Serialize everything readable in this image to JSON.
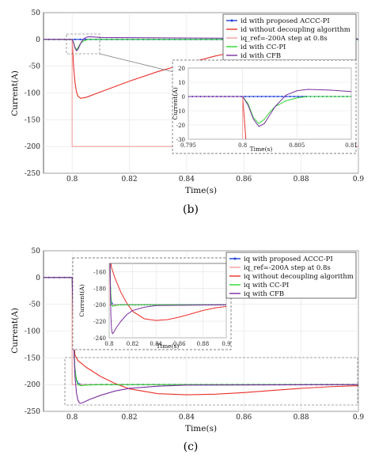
{
  "chart_data": [
    {
      "type": "line",
      "caption": "(b)",
      "xlabel": "Time(s)",
      "ylabel": "Current(A)",
      "xlim": [
        0.79,
        0.9
      ],
      "ylim": [
        -250,
        50
      ],
      "xticks": [
        0.8,
        0.82,
        0.84,
        0.86,
        0.88,
        0.9
      ],
      "xtick_labels": [
        "0.8",
        "0.82",
        "0.84",
        "0.86",
        "0.88",
        "0.9"
      ],
      "yticks": [
        50,
        0,
        -50,
        -100,
        -150,
        -200,
        -250
      ],
      "ytick_labels": [
        "50",
        "0",
        "-50",
        "-100",
        "-150",
        "-200",
        "-250"
      ],
      "grid": true,
      "legend_position": "top-right",
      "series": [
        {
          "name": "id with proposed ACCC-PI",
          "color": "#1f3fd6",
          "marker": "dot",
          "x": [
            0.79,
            0.8,
            0.802,
            0.805,
            0.81,
            0.82,
            0.84,
            0.86,
            0.88,
            0.9
          ],
          "y": [
            0,
            0,
            0,
            0,
            0,
            0,
            0,
            0,
            0,
            0
          ]
        },
        {
          "name": "id without decoupling algorithm",
          "color": "#e8302a",
          "x": [
            0.79,
            0.8,
            0.80005,
            0.8005,
            0.801,
            0.8015,
            0.802,
            0.803,
            0.805,
            0.81,
            0.815,
            0.82,
            0.83,
            0.84,
            0.85,
            0.86,
            0.87,
            0.88
          ],
          "y": [
            0,
            0,
            -5,
            -50,
            -80,
            -98,
            -106,
            -110,
            -108,
            -98,
            -88,
            -78,
            -60,
            -45,
            -31,
            -20,
            -10,
            -3
          ]
        },
        {
          "name": "iq_ref=-200A step at 0.8s",
          "color": "#f2a0a0",
          "x": [
            0.79,
            0.8,
            0.8,
            0.9
          ],
          "y": [
            0,
            0,
            -200,
            -200
          ]
        },
        {
          "name": "id with CC-PI",
          "color": "#2ed52e",
          "x": [
            0.79,
            0.8,
            0.8005,
            0.801,
            0.8015,
            0.802,
            0.8025,
            0.803,
            0.804,
            0.805,
            0.806,
            0.808,
            0.81,
            0.9
          ],
          "y": [
            0,
            0,
            -5,
            -15,
            -19,
            -16,
            -11,
            -7,
            -3,
            -1,
            0,
            0,
            0,
            0
          ]
        },
        {
          "name": "id with CFB",
          "color": "#7b2fa0",
          "x": [
            0.79,
            0.8,
            0.8005,
            0.801,
            0.8015,
            0.802,
            0.8025,
            0.803,
            0.804,
            0.805,
            0.806,
            0.808,
            0.81,
            0.9
          ],
          "y": [
            0,
            0,
            -6,
            -16,
            -21,
            -19,
            -13,
            -7,
            1,
            4,
            5,
            4.5,
            3.5,
            1
          ]
        }
      ],
      "inset": {
        "xlabel": "Time(s)",
        "ylabel": "Current(A)",
        "xlim": [
          0.795,
          0.81
        ],
        "ylim": [
          -30,
          20
        ],
        "xticks": [
          0.795,
          0.8,
          0.805,
          0.81
        ],
        "xtick_labels": [
          "0.795",
          "0.8",
          "0.805",
          "0.81"
        ],
        "yticks": [
          20,
          10,
          0,
          -10,
          -20,
          -30
        ],
        "ytick_labels": [
          "20",
          "10",
          "0",
          "-10",
          "-20",
          "-30"
        ],
        "grid": true
      }
    },
    {
      "type": "line",
      "caption": "(c)",
      "xlabel": "Time(s)",
      "ylabel": "Current(A)",
      "xlim": [
        0.79,
        0.9
      ],
      "ylim": [
        -250,
        50
      ],
      "xticks": [
        0.8,
        0.82,
        0.84,
        0.86,
        0.88,
        0.9
      ],
      "xtick_labels": [
        "0.8",
        "0.82",
        "0.84",
        "0.86",
        "0.88",
        "0.9"
      ],
      "yticks": [
        50,
        0,
        -50,
        -100,
        -150,
        -200,
        -250
      ],
      "ytick_labels": [
        "50",
        "0",
        "-50",
        "-100",
        "-150",
        "-200",
        "-250"
      ],
      "grid": true,
      "legend_position": "top-right",
      "series": [
        {
          "name": "iq with proposed ACCC-PI",
          "color": "#1f3fd6",
          "marker": "dot",
          "x": [
            0.79,
            0.8,
            0.8003,
            0.8006,
            0.801,
            0.8015,
            0.802,
            0.803,
            0.805,
            0.81,
            0.85,
            0.9
          ],
          "y": [
            0,
            0,
            -60,
            -130,
            -175,
            -190,
            -197,
            -200,
            -200,
            -200,
            -200,
            -200
          ]
        },
        {
          "name": "iq_ref=-200A step at 0.8s",
          "color": "#f2a0a0",
          "x": [
            0.79,
            0.8,
            0.8,
            0.9
          ],
          "y": [
            0,
            0,
            -200,
            -200
          ]
        },
        {
          "name": "iq without decoupling algorithm",
          "color": "#e8302a",
          "x": [
            0.79,
            0.8,
            0.8003,
            0.8006,
            0.801,
            0.802,
            0.805,
            0.81,
            0.815,
            0.82,
            0.83,
            0.84,
            0.85,
            0.86,
            0.87,
            0.88,
            0.89,
            0.9
          ],
          "y": [
            0,
            0,
            -60,
            -120,
            -145,
            -155,
            -168,
            -185,
            -198,
            -208,
            -217,
            -219,
            -218,
            -215,
            -211,
            -207,
            -204,
            -202
          ]
        },
        {
          "name": "iq with CC-PI",
          "color": "#2ed52e",
          "x": [
            0.79,
            0.8,
            0.8003,
            0.8006,
            0.801,
            0.8015,
            0.802,
            0.803,
            0.805,
            0.81,
            0.85,
            0.9
          ],
          "y": [
            0,
            0,
            -60,
            -128,
            -172,
            -192,
            -200,
            -202,
            -201,
            -200,
            -200,
            -200
          ]
        },
        {
          "name": "iq with CFB",
          "color": "#7b2fa0",
          "x": [
            0.79,
            0.8,
            0.8003,
            0.8006,
            0.801,
            0.8015,
            0.802,
            0.8025,
            0.803,
            0.804,
            0.806,
            0.81,
            0.815,
            0.82,
            0.83,
            0.84,
            0.9
          ],
          "y": [
            0,
            0,
            -60,
            -130,
            -185,
            -215,
            -229,
            -234,
            -235,
            -233,
            -228,
            -220,
            -212,
            -207,
            -203,
            -201,
            -200
          ]
        }
      ],
      "inset": {
        "xlabel": "Time(s)",
        "ylabel": "Current(A)",
        "xlim": [
          0.8,
          0.9
        ],
        "ylim": [
          -240,
          -150
        ],
        "xticks": [
          0.8,
          0.82,
          0.84,
          0.86,
          0.88,
          0.9
        ],
        "xtick_labels": [
          "0.8",
          "0.82",
          "0.84",
          "0.86",
          "0.88",
          "0.9"
        ],
        "yticks": [
          -160,
          -180,
          -200,
          -220,
          -240
        ],
        "ytick_labels": [
          "-160",
          "-180",
          "-200",
          "-220",
          "-240"
        ],
        "grid": true
      }
    }
  ]
}
